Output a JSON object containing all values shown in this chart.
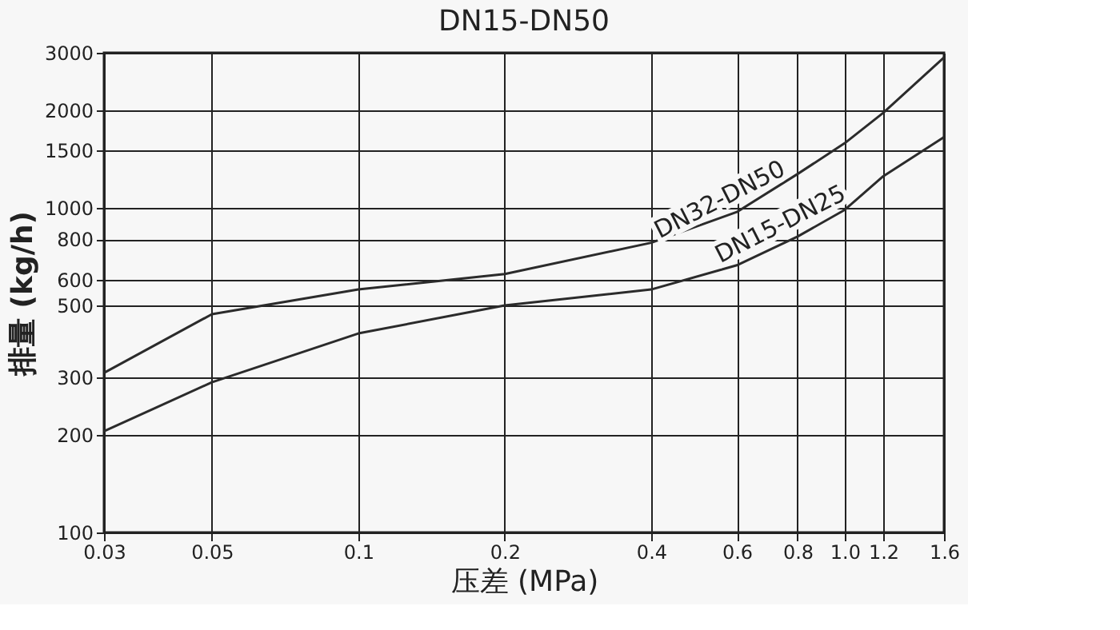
{
  "chart_data": {
    "type": "line",
    "title": "DN15-DN50",
    "xlabel": "压差 (MPa)",
    "ylabel": "排量 (kg/h)",
    "x": [
      0.03,
      0.05,
      0.1,
      0.2,
      0.4,
      0.6,
      0.8,
      1.0,
      1.2,
      1.6
    ],
    "series": [
      {
        "name": "DN32-DN50",
        "color": "#2b2b2b",
        "values": [
          310,
          470,
          560,
          625,
          780,
          970,
          1270,
          1580,
          1960,
          2900
        ]
      },
      {
        "name": "DN15-DN25",
        "color": "#2b2b2b",
        "values": [
          205,
          290,
          410,
          500,
          560,
          665,
          815,
          985,
          1250,
          1650
        ]
      }
    ],
    "log": "xy",
    "xlim": [
      0.03,
      1.6
    ],
    "ylim": [
      100,
      3000
    ],
    "xticks": [
      0.03,
      0.05,
      0.1,
      0.2,
      0.4,
      0.6,
      0.8,
      {
        "value": 1,
        "label": "1.0"
      },
      1.2,
      1.6
    ],
    "yticks": [
      100,
      200,
      300,
      500,
      600,
      800,
      1000,
      1500,
      2000,
      3000
    ],
    "grid": true,
    "legend": false,
    "marker": "none",
    "line_style": "solid"
  }
}
